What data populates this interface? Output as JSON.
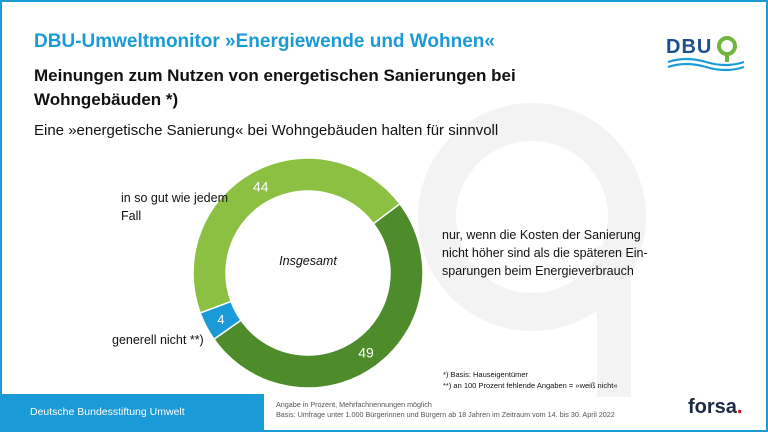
{
  "header": {
    "title": "DBU-Umweltmonitor »Energiewende und Wohnen«",
    "logo_text": "DBU"
  },
  "headline": "Meinungen zum Nutzen von energetischen Sanierungen bei Wohngebäuden *)",
  "subline": "Eine »energetische Sanierung« bei Wohngebäuden halten für sinnvoll",
  "chart_data": {
    "type": "pie",
    "center_label": "Insgesamt",
    "slices": [
      {
        "label": "in so gut wie jedem Fall",
        "value": 44,
        "color": "#8cc043"
      },
      {
        "label": "nur, wenn die Kosten der Sanierung nicht höher sind als die späteren Ein-sparungen beim Energieverbrauch",
        "value": 49,
        "color": "#4e8b2b"
      },
      {
        "label": "generell nicht **)",
        "value": 4,
        "color": "#1a9ad6"
      }
    ]
  },
  "labels": {
    "a": "in so gut wie jedem Fall",
    "b": "nur, wenn die Kosten der Sanierung nicht höher sind als die späteren Ein-sparungen beim Energieverbrauch",
    "c": "generell nicht **)"
  },
  "footnotes": {
    "f1": "*) Basis: Hauseigentümer",
    "f2": "**) an 100 Prozent fehlende Angaben = »weiß nicht«"
  },
  "footer": {
    "org": "Deutsche Bundesstiftung Umwelt",
    "note1": "Angabe in Prozent, Mehrfachnennungen möglich",
    "note2": "Basis: Umfrage unter 1.000 Bürgerinnen und Bürgern ab 18 Jahren im Zeitraum vom 14. bis 30. April 2022",
    "brand": "forsa",
    "brand_dot": "."
  }
}
